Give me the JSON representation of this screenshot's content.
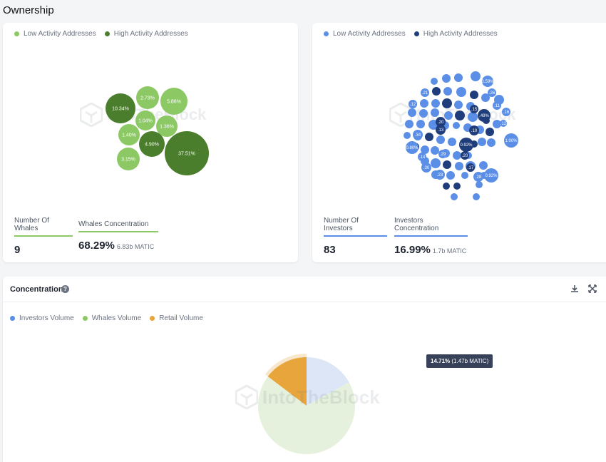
{
  "page": {
    "title": "Ownership"
  },
  "whales_card": {
    "legend": [
      {
        "label": "Low Activity Addresses",
        "color": "#8cc965"
      },
      {
        "label": "High Activity Addresses",
        "color": "#4a7d2c"
      }
    ],
    "watermark": "IntoTheBlock",
    "bubbles": [
      {
        "label": "10.34%",
        "value": 10.34,
        "level": "high"
      },
      {
        "label": "2.73%",
        "value": 2.73,
        "level": "low"
      },
      {
        "label": "5.86%",
        "value": 5.86,
        "level": "low"
      },
      {
        "label": "1.04%",
        "value": 1.04,
        "level": "low"
      },
      {
        "label": "1.36%",
        "value": 1.36,
        "level": "low"
      },
      {
        "label": "1.40%",
        "value": 1.4,
        "level": "low"
      },
      {
        "label": "4.90%",
        "value": 4.9,
        "level": "high"
      },
      {
        "label": "37.51%",
        "value": 37.51,
        "level": "high"
      },
      {
        "label": "3.15%",
        "value": 3.15,
        "level": "low"
      }
    ],
    "stat1": {
      "label": "Number Of Whales",
      "value": "9"
    },
    "stat2": {
      "label": "Whales Concentration",
      "value": "68.29%",
      "sub": "6.83b MATIC"
    }
  },
  "investors_card": {
    "legend": [
      {
        "label": "Low Activity Addresses",
        "color": "#5b8ee6"
      },
      {
        "label": "High Activity Addresses",
        "color": "#1f3d7a"
      }
    ],
    "watermark": "IntoTheBlock",
    "bubbles": [
      {
        "label": "0.59%",
        "level": "low"
      },
      {
        "label": ".26",
        "level": "low"
      },
      {
        "label": ".21",
        "level": "low"
      },
      {
        "label": ".12",
        "level": "low"
      },
      {
        "label": ".11",
        "level": "low"
      },
      {
        "label": ".16",
        "level": "low"
      },
      {
        "label": ".49%",
        "level": "high"
      },
      {
        "label": ".15",
        "level": "high"
      },
      {
        "label": ".20",
        "level": "high"
      },
      {
        "label": ".13",
        "level": "high"
      },
      {
        "label": "0.92%",
        "level": "high"
      },
      {
        "label": ".10",
        "level": "high"
      },
      {
        "label": ".20",
        "level": "high"
      },
      {
        "label": ".17",
        "level": "high"
      },
      {
        "label": ".34",
        "level": "low"
      },
      {
        "label": "0.80%",
        "level": "low"
      },
      {
        "label": "1.00%",
        "level": "low"
      },
      {
        "label": ".14",
        "level": "low"
      },
      {
        "label": ".29",
        "level": "low"
      },
      {
        "label": ".30",
        "level": "low"
      },
      {
        "label": ".23",
        "level": "low"
      },
      {
        "label": ".28",
        "level": "low"
      },
      {
        "label": "0.92%",
        "level": "low"
      },
      {
        "label": ".12",
        "level": "low"
      }
    ],
    "stat1": {
      "label": "Number Of Investors",
      "value": "83"
    },
    "stat2": {
      "label": "Investors Concentration",
      "value": "16.99%",
      "sub": "1.7b MATIC"
    }
  },
  "concentration": {
    "title": "Concentration",
    "watermark": "IntoTheBlock",
    "legend": [
      {
        "label": "Investors Volume",
        "color": "#5b8ee6"
      },
      {
        "label": "Whales Volume",
        "color": "#8cc965"
      },
      {
        "label": "Retail Volume",
        "color": "#e8a53c"
      }
    ],
    "tooltip": {
      "value": "14.71%",
      "detail": "(1.47b MATIC)"
    },
    "chart_data": {
      "type": "pie",
      "slices": [
        {
          "name": "Investors Volume",
          "value": 16.99,
          "color": "#dde6f7"
        },
        {
          "name": "Whales Volume",
          "value": 68.29,
          "color": "#e5f1dc"
        },
        {
          "name": "Retail Volume",
          "value": 14.71,
          "color": "#e8a53c"
        }
      ],
      "highlighted": "Retail Volume"
    }
  }
}
